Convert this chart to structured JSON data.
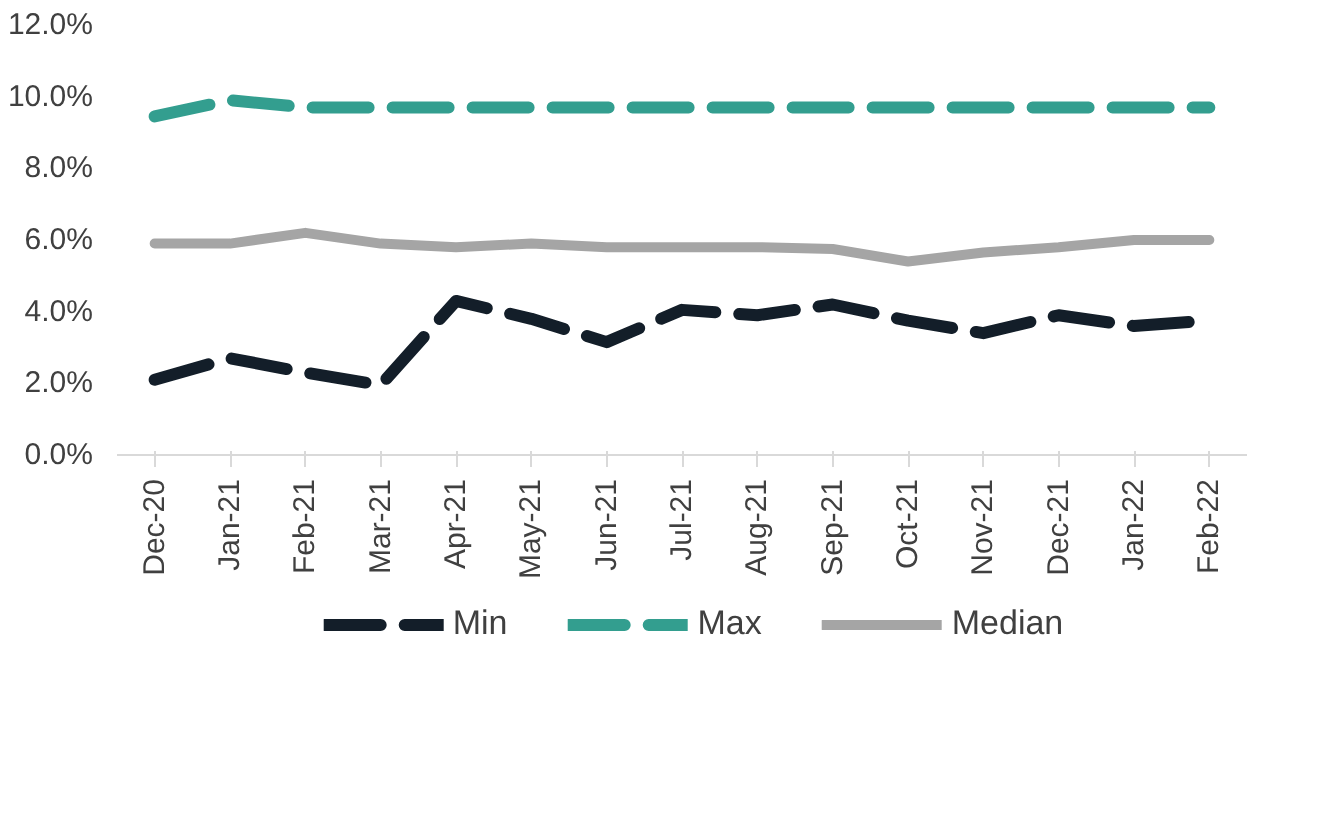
{
  "chart_data": {
    "type": "line",
    "categories": [
      "Dec-20",
      "Jan-21",
      "Feb-21",
      "Mar-21",
      "Apr-21",
      "May-21",
      "Jun-21",
      "Jul-21",
      "Aug-21",
      "Sep-21",
      "Oct-21",
      "Nov-21",
      "Dec-21",
      "Jan-22",
      "Feb-22"
    ],
    "series": [
      {
        "name": "Min",
        "color": "#131e29",
        "line_style": "dashed",
        "values": [
          2.1,
          2.7,
          2.3,
          1.95,
          4.3,
          3.8,
          3.15,
          4.05,
          3.9,
          4.2,
          3.75,
          3.4,
          3.9,
          3.6,
          3.75
        ]
      },
      {
        "name": "Max",
        "color": "#339e8f",
        "line_style": "dashed",
        "values": [
          9.45,
          9.9,
          9.7,
          9.7,
          9.7,
          9.7,
          9.7,
          9.7,
          9.7,
          9.7,
          9.7,
          9.7,
          9.7,
          9.7,
          9.7
        ]
      },
      {
        "name": "Median",
        "color": "#a5a5a5",
        "line_style": "solid",
        "values": [
          5.9,
          5.9,
          6.2,
          5.9,
          5.8,
          5.9,
          5.8,
          5.8,
          5.8,
          5.75,
          5.4,
          5.65,
          5.8,
          6.0,
          6.0
        ]
      }
    ],
    "ylim": [
      0,
      12
    ],
    "yticks": [
      {
        "value": 0,
        "label": "0.0%"
      },
      {
        "value": 2,
        "label": "2.0%"
      },
      {
        "value": 4,
        "label": "4.0%"
      },
      {
        "value": 6,
        "label": "6.0%"
      },
      {
        "value": 8,
        "label": "8.0%"
      },
      {
        "value": 10,
        "label": "10.0%"
      },
      {
        "value": 12,
        "label": "12.0%"
      }
    ],
    "grid": false,
    "legend": "bottom",
    "marker": "none"
  }
}
